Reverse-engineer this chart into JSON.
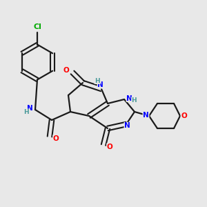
{
  "background_color": "#e8e8e8",
  "bond_color": "#1a1a1a",
  "atom_colors": {
    "N": "#0000ff",
    "O": "#ff0000",
    "Cl": "#00aa00",
    "C": "#1a1a1a",
    "H": "#4a9a9a"
  },
  "figsize": [
    3.0,
    3.0
  ],
  "dpi": 100
}
